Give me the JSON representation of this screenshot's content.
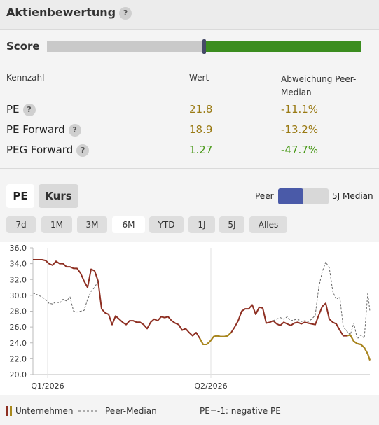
{
  "header": {
    "title": "Aktienbewertung"
  },
  "help_icon": "?",
  "score": {
    "label": "Score"
  },
  "table": {
    "columns": [
      "Kennzahl",
      "Wert",
      "Abweichung Peer-Median"
    ],
    "rows": [
      {
        "name": "PE",
        "value": "21.8",
        "deviation": "-11.1%",
        "value_color": "#9a7a14",
        "deviation_color": "#9a7a14"
      },
      {
        "name": "PE Forward",
        "value": "18.9",
        "deviation": "-13.2%",
        "value_color": "#9a7a14",
        "deviation_color": "#9a7a14"
      },
      {
        "name": "PEG Forward",
        "value": "1.27",
        "deviation": "-47.7%",
        "value_color": "#4a9a1a",
        "deviation_color": "#4a9a1a"
      }
    ]
  },
  "tabs": [
    "PE",
    "Kurs"
  ],
  "toggle": {
    "left": "Peer",
    "right": "5J Median"
  },
  "ranges": [
    "7d",
    "1M",
    "3M",
    "6M",
    "YTD",
    "1J",
    "5J",
    "Alles"
  ],
  "legend_note": "PE=-1: negative PE",
  "chart_data": {
    "type": "line",
    "x": [
      0,
      3,
      8,
      13,
      18,
      23,
      28,
      33,
      38,
      43,
      48,
      53,
      58,
      63,
      68,
      73,
      78,
      83,
      88,
      93,
      98,
      103,
      108,
      113,
      118,
      123,
      128,
      133,
      138,
      143,
      148,
      153,
      158,
      163,
      168,
      173,
      178,
      183,
      188,
      193,
      198,
      203,
      208,
      213,
      218,
      223,
      228,
      233,
      238,
      243,
      248,
      253,
      258,
      263,
      268,
      273,
      278,
      283,
      288,
      293,
      298,
      303,
      308,
      313,
      318,
      323,
      328,
      333,
      338,
      343,
      348,
      353,
      358,
      363,
      368,
      373,
      378,
      383,
      388,
      393,
      398,
      403,
      408,
      413,
      418,
      423,
      428,
      433,
      438,
      443,
      448,
      453,
      458,
      463,
      468,
      473,
      478,
      481
    ],
    "xlim": [
      0,
      481
    ],
    "xticks": [
      {
        "value": 21,
        "label": "Q1/2026"
      },
      {
        "value": 254,
        "label": "Q2/2026"
      }
    ],
    "ylim": [
      20,
      36
    ],
    "yticks": [
      {
        "value": 20,
        "label": "20.0"
      },
      {
        "value": 22,
        "label": "22.0"
      },
      {
        "value": 24,
        "label": "24.0"
      },
      {
        "value": 26,
        "label": "26.0"
      },
      {
        "value": 28,
        "label": "28.0"
      },
      {
        "value": 30,
        "label": "30.0"
      },
      {
        "value": 32,
        "label": "32.0"
      },
      {
        "value": 34,
        "label": "34.0"
      },
      {
        "value": 36,
        "label": "36.0"
      }
    ],
    "series": [
      {
        "name": "Unternehmen",
        "color": "#8e2f22",
        "values": [
          34.5,
          34.5,
          34.5,
          34.5,
          34.4,
          34.0,
          33.8,
          34.3,
          34.0,
          34.0,
          33.6,
          33.6,
          33.4,
          33.4,
          32.8,
          31.8,
          31.0,
          33.3,
          33.1,
          31.8,
          28.3,
          27.8,
          27.6,
          26.3,
          27.4,
          27.0,
          26.6,
          26.3,
          26.8,
          26.8,
          26.6,
          26.6,
          26.3,
          25.8,
          26.6,
          27.0,
          26.8,
          27.3,
          27.2,
          27.3,
          26.8,
          26.5,
          26.3,
          25.6,
          25.8,
          25.3,
          24.9,
          25.3,
          24.6,
          23.8,
          23.8,
          24.2,
          24.8,
          24.9,
          24.8,
          24.8,
          24.9,
          25.3,
          26.0,
          26.8,
          28.0,
          28.3,
          28.3,
          28.8,
          27.6,
          28.5,
          28.4,
          26.5,
          26.6,
          26.8,
          26.4,
          26.2,
          26.6,
          26.4,
          26.2,
          26.5,
          26.6,
          26.4,
          26.6,
          26.5,
          26.4,
          26.3,
          27.5,
          28.6,
          29.0,
          27.0,
          26.6,
          26.4,
          25.6,
          24.9,
          24.9,
          25.0,
          24.2,
          23.9,
          23.8,
          23.4,
          22.6,
          21.8
        ]
      },
      {
        "color": "#a8891c",
        "values": [
          null,
          null,
          null,
          null,
          null,
          null,
          null,
          null,
          null,
          null,
          null,
          null,
          null,
          null,
          null,
          null,
          null,
          null,
          null,
          null,
          null,
          null,
          null,
          null,
          null,
          null,
          null,
          null,
          null,
          null,
          null,
          null,
          null,
          null,
          null,
          null,
          null,
          null,
          null,
          null,
          null,
          null,
          null,
          null,
          null,
          null,
          null,
          null,
          24.6,
          23.8,
          23.8,
          24.2,
          24.8,
          24.9,
          24.8,
          24.8,
          24.9,
          25.3,
          null,
          null,
          null,
          null,
          null,
          null,
          null,
          null,
          null,
          null,
          null,
          null,
          null,
          null,
          null,
          null,
          null,
          null,
          null,
          null,
          null,
          null,
          null,
          null,
          null,
          null,
          null,
          null,
          null,
          null,
          null,
          null,
          24.9,
          25.0,
          24.2,
          23.9,
          23.8,
          23.4,
          22.6,
          21.8
        ]
      },
      {
        "name": "Peer-Median",
        "color": "#666666",
        "dashed": true,
        "values": [
          30.3,
          30.2,
          30.0,
          29.8,
          29.5,
          29.0,
          28.9,
          29.2,
          29.0,
          29.5,
          29.3,
          29.8,
          28.0,
          27.9,
          28.0,
          28.1,
          29.5,
          30.5,
          31.0,
          31.8,
          null,
          null,
          null,
          null,
          null,
          null,
          null,
          null,
          null,
          null,
          null,
          null,
          null,
          null,
          null,
          null,
          null,
          null,
          null,
          null,
          null,
          null,
          null,
          null,
          null,
          null,
          null,
          null,
          null,
          null,
          null,
          null,
          null,
          null,
          null,
          null,
          null,
          null,
          null,
          null,
          null,
          null,
          null,
          null,
          null,
          null,
          null,
          null,
          null,
          26.8,
          27.0,
          27.2,
          27.0,
          27.3,
          26.8,
          26.9,
          27.0,
          26.7,
          26.8,
          26.7,
          27.0,
          27.5,
          31.0,
          33.0,
          34.2,
          33.5,
          30.5,
          29.5,
          29.8,
          26.0,
          25.5,
          25.0,
          26.5,
          24.5,
          25.0,
          24.6,
          30.3,
          28.0
        ]
      }
    ]
  }
}
